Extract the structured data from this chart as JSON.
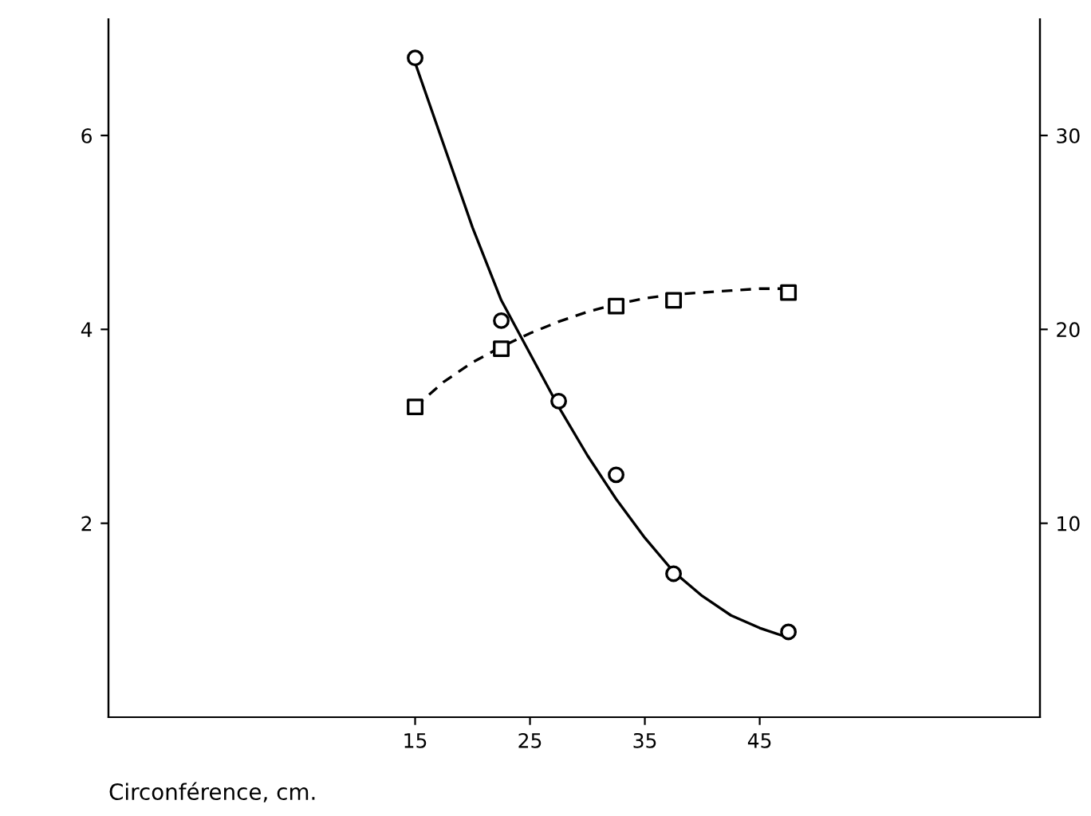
{
  "chart_data": {
    "type": "scatter",
    "xlabel": "Circonférence, cm.",
    "xlim": [
      -11.7,
      69.4
    ],
    "xticks": [
      15,
      25,
      35,
      45
    ],
    "ylim": [
      0,
      7.2
    ],
    "yticks": [
      2,
      4,
      6
    ],
    "y2lim": [
      0,
      36
    ],
    "y2ticks": [
      10,
      20,
      30
    ],
    "grid": false,
    "legend": false,
    "series": [
      {
        "marker": "circle",
        "color": "#000000",
        "x": [
          15,
          22.5,
          27.5,
          32.5,
          37.5,
          47.5
        ],
        "values": [
          6.8,
          4.09,
          3.26,
          2.5,
          1.48,
          0.88
        ]
      },
      {
        "marker": "square",
        "color": "#000000",
        "axis": "y2",
        "x": [
          15,
          22.5,
          32.5,
          37.5,
          47.5
        ],
        "values": [
          16.0,
          19.0,
          21.2,
          21.5,
          21.9
        ]
      },
      {
        "type": "line",
        "line_style": "solid",
        "color": "#000000",
        "x": [
          15,
          20,
          22.5,
          25,
          27.5,
          30,
          32.5,
          35,
          37.5,
          40,
          42.5,
          45,
          47.5
        ],
        "values": [
          6.75,
          5.05,
          4.3,
          3.75,
          3.2,
          2.7,
          2.25,
          1.85,
          1.5,
          1.25,
          1.05,
          0.92,
          0.82
        ]
      },
      {
        "type": "line",
        "line_style": "dashed",
        "color": "#000000",
        "axis": "y2",
        "x": [
          15,
          17.5,
          20,
          22.5,
          25,
          27.5,
          30,
          32.5,
          35,
          37.5,
          40,
          42.5,
          45,
          47.5
        ],
        "values": [
          16,
          17.3,
          18.3,
          19.1,
          19.8,
          20.4,
          20.9,
          21.3,
          21.6,
          21.8,
          21.9,
          22.0,
          22.1,
          22.1
        ]
      }
    ]
  }
}
